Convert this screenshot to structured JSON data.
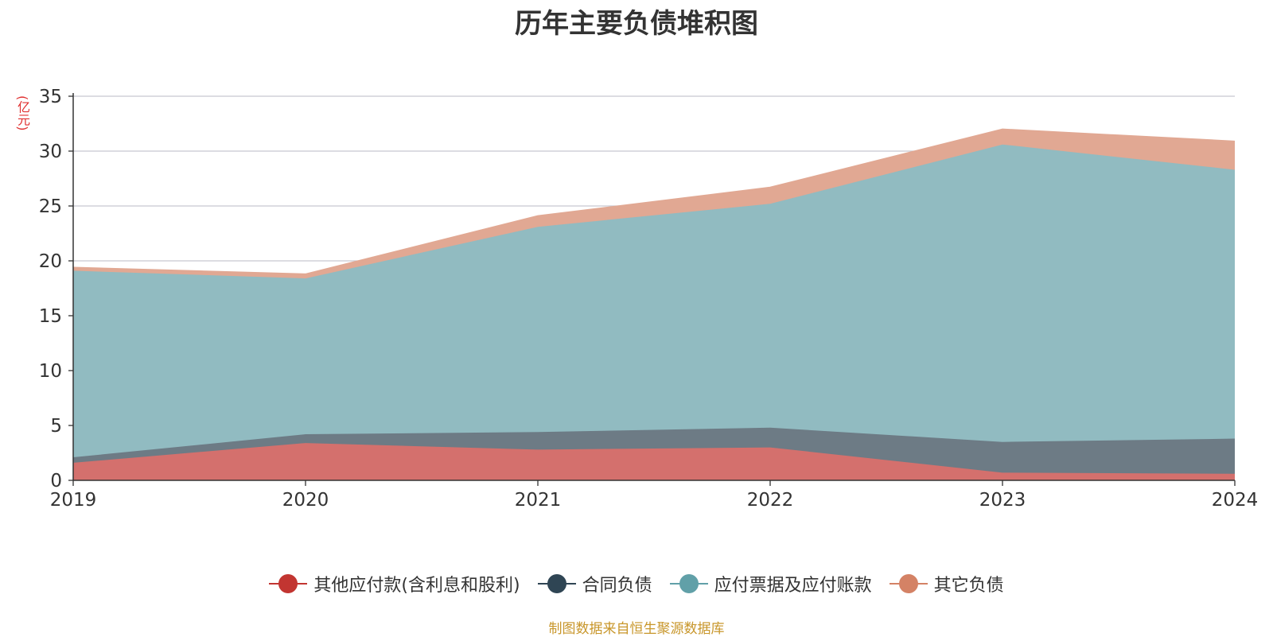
{
  "chart_data": {
    "type": "area",
    "stacked": true,
    "title": "历年主要负债堆积图",
    "ylabel": "(亿元)",
    "ylim": [
      0,
      35
    ],
    "yticks": [
      0,
      5,
      10,
      15,
      20,
      25,
      30,
      35
    ],
    "grid": true,
    "legend_position": "bottom",
    "categories": [
      "2019",
      "2020",
      "2021",
      "2022",
      "2023",
      "2024"
    ],
    "series": [
      {
        "name": "其他应付款(含利息和股利)",
        "color": "#c23531",
        "fill": "#d4706d",
        "values": [
          1.6,
          3.4,
          2.8,
          3.0,
          0.7,
          0.6
        ]
      },
      {
        "name": "合同负债",
        "color": "#2f4554",
        "fill": "#6d7b85",
        "values": [
          0.5,
          0.8,
          1.6,
          1.8,
          2.8,
          3.2
        ]
      },
      {
        "name": "应付票据及应付账款",
        "color": "#61a0a8",
        "fill": "#91bbc1",
        "values": [
          17.0,
          14.2,
          18.7,
          20.4,
          27.1,
          24.5
        ]
      },
      {
        "name": "其它负债",
        "color": "#d48265",
        "fill": "#e1a893",
        "values": [
          0.3,
          0.4,
          1.0,
          1.5,
          1.4,
          2.6
        ]
      }
    ]
  },
  "source": "制图数据来自恒生聚源数据库"
}
